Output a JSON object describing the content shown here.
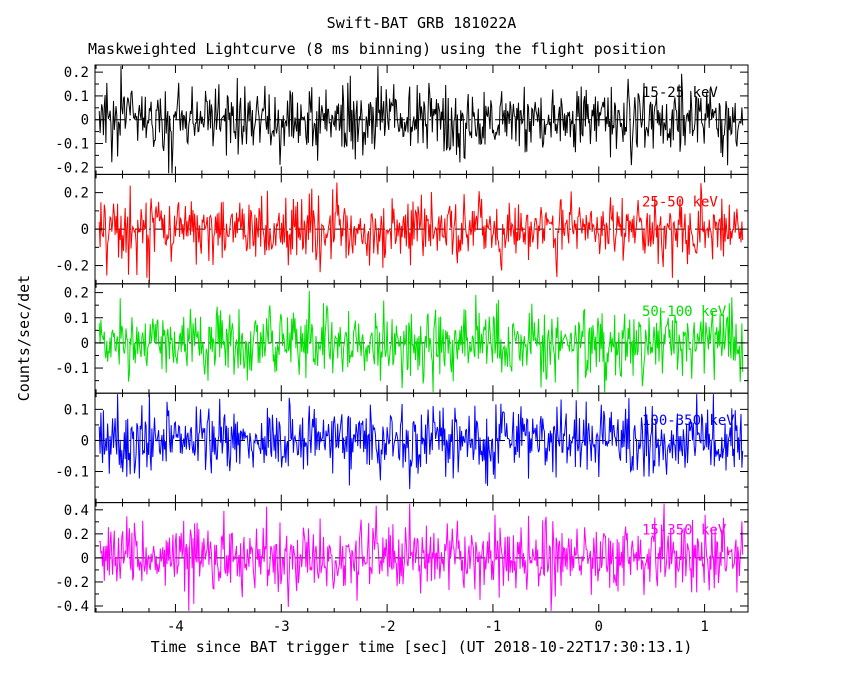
{
  "chart_data": {
    "type": "line",
    "title": "Swift-BAT GRB 181022A",
    "subtitle": "Maskweighted Lightcurve (8 ms binning) using the flight position",
    "xlabel": "Time since BAT trigger time [sec] (UT 2018-10-22T17:30:13.1)",
    "ylabel": "Counts/sec/det",
    "xlim": [
      -4.76,
      1.41
    ],
    "x_start": -4.72,
    "x_end": 1.36,
    "n_points": 770,
    "bin_seconds": 0.008,
    "xticks": {
      "values": [
        -4,
        -3,
        -2,
        -1,
        0,
        1
      ],
      "labels": [
        "-4",
        "-3",
        "-2",
        "-1",
        "0",
        "1"
      ]
    },
    "xminor_step": 0.25,
    "grid": false,
    "legend": "in-panel colored labels",
    "background": "#ffffff",
    "frame_color": "#000000",
    "zero_line": {
      "style": "dash-dot",
      "color": "#000000",
      "value": 0
    },
    "panels": [
      {
        "label": "15-25 keV",
        "color": "#000000",
        "ylim": [
          -0.23,
          0.23
        ],
        "yticks": {
          "values": [
            0.2,
            0.1,
            0,
            -0.1,
            -0.2
          ],
          "labels": [
            "0.2",
            "0.1",
            "0",
            "-0.1",
            "-0.2"
          ]
        },
        "noise_sigma": 0.07,
        "mean": 0,
        "seed": 11
      },
      {
        "label": "25-50 keV",
        "color": "#ff0000",
        "ylim": [
          -0.3,
          0.3
        ],
        "yticks": {
          "values": [
            0.2,
            0,
            -0.2
          ],
          "labels": [
            "0.2",
            "0",
            "-0.2"
          ]
        },
        "noise_sigma": 0.088,
        "mean": 0,
        "seed": 22
      },
      {
        "label": "50-100 keV",
        "color": "#00e000",
        "ylim": [
          -0.2,
          0.235
        ],
        "yticks": {
          "values": [
            0.2,
            0.1,
            0,
            -0.1
          ],
          "labels": [
            "0.2",
            "0.1",
            "0",
            "-0.1"
          ]
        },
        "noise_sigma": 0.075,
        "mean": 0,
        "seed": 33
      },
      {
        "label": "100-350 keV",
        "color": "#0000ff",
        "ylim": [
          -0.2,
          0.152
        ],
        "yticks": {
          "values": [
            0.1,
            0,
            -0.1
          ],
          "labels": [
            "0.1",
            "0",
            "-0.1"
          ]
        },
        "noise_sigma": 0.055,
        "mean": 0,
        "seed": 44
      },
      {
        "label": "15-350 keV",
        "color": "#ff00ff",
        "ylim": [
          -0.45,
          0.46
        ],
        "yticks": {
          "values": [
            0.4,
            0.2,
            0,
            -0.2,
            -0.4
          ],
          "labels": [
            "0.4",
            "0.2",
            "0",
            "-0.2",
            "-0.4"
          ]
        },
        "noise_sigma": 0.15,
        "mean": 0,
        "seed": 55
      }
    ]
  }
}
